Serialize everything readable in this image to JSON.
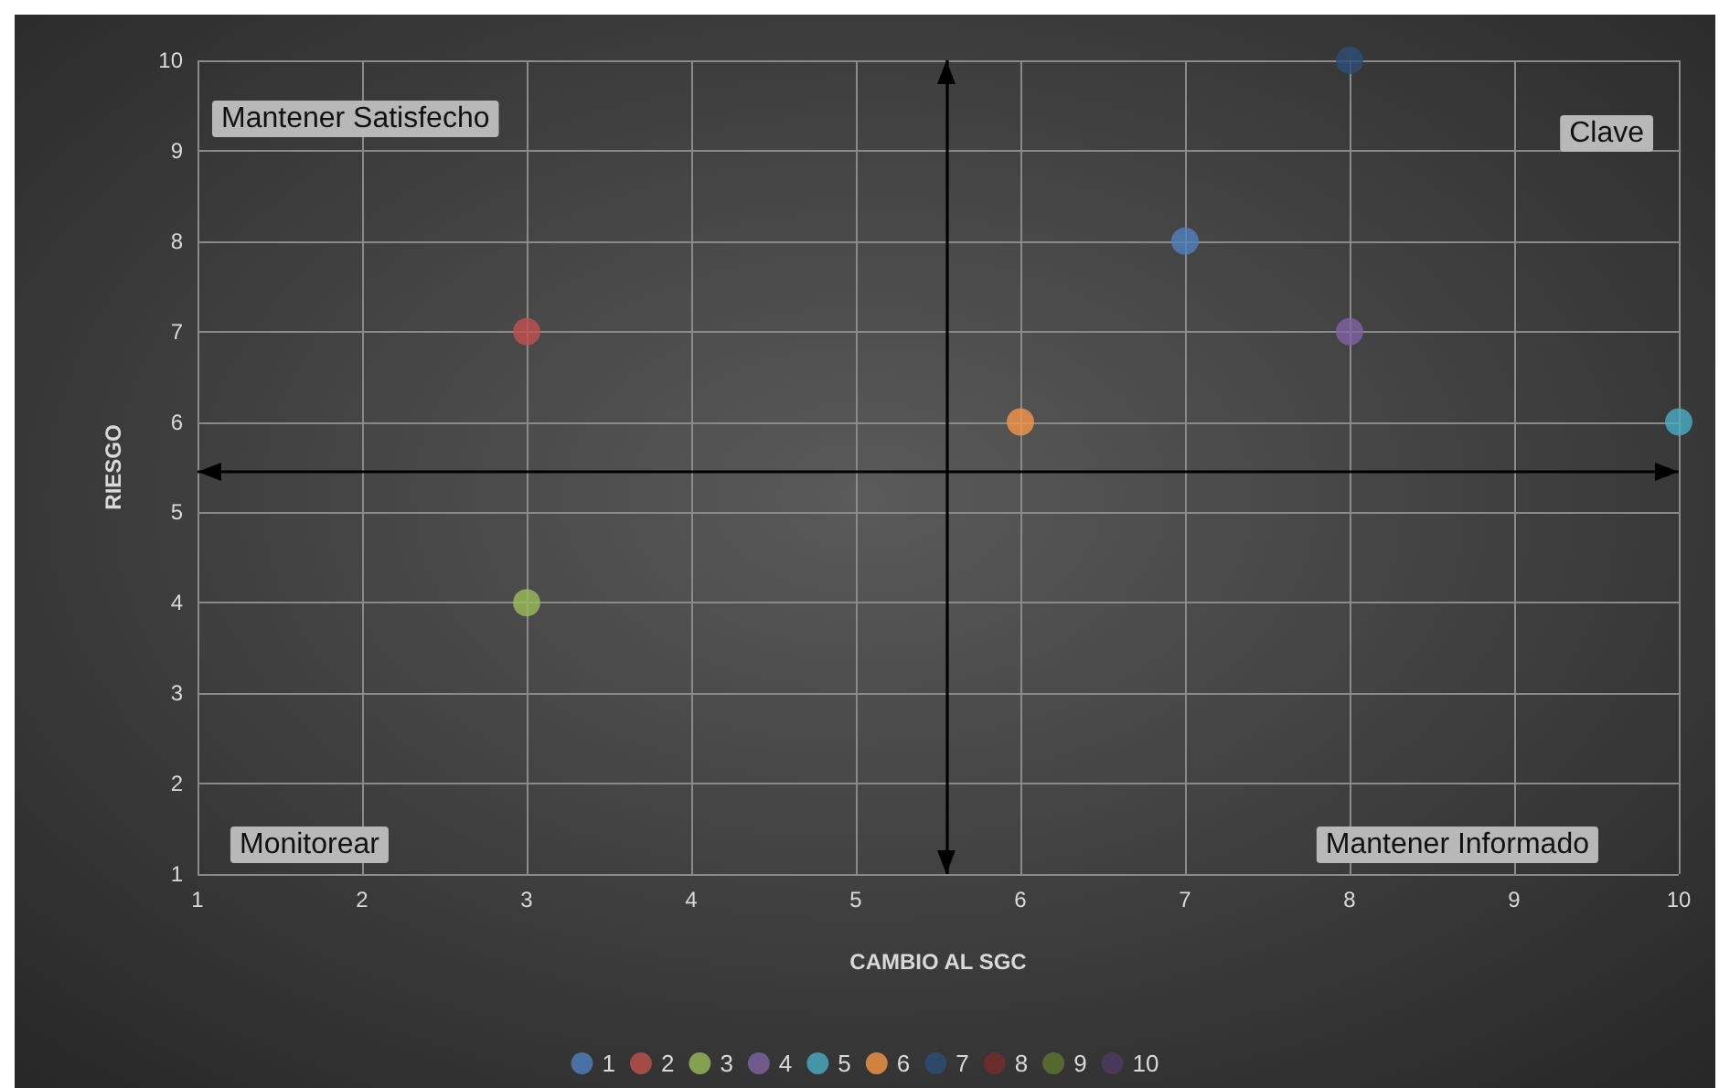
{
  "chart_data": {
    "type": "scatter",
    "xlabel": "CAMBIO AL SGC",
    "ylabel": "RIESGO",
    "xlim": [
      1,
      10
    ],
    "xticks": [
      1,
      2,
      3,
      4,
      5,
      6,
      7,
      8,
      9,
      10
    ],
    "ylim": [
      1,
      10
    ],
    "yticks": [
      1,
      2,
      3,
      4,
      5,
      6,
      7,
      8,
      9,
      10
    ],
    "grid": true,
    "legend": "bottom",
    "marker": "circle",
    "series": [
      {
        "name": "1",
        "color": "#4f81bd",
        "x": [
          7
        ],
        "values": [
          8
        ]
      },
      {
        "name": "2",
        "color": "#c0504d",
        "x": [
          3
        ],
        "values": [
          7
        ]
      },
      {
        "name": "3",
        "color": "#9bbb59",
        "x": [
          3
        ],
        "values": [
          4
        ]
      },
      {
        "name": "4",
        "color": "#8064a2",
        "x": [
          8
        ],
        "values": [
          7
        ]
      },
      {
        "name": "5",
        "color": "#4bacc6",
        "x": [
          10
        ],
        "values": [
          6
        ]
      },
      {
        "name": "6",
        "color": "#f79646",
        "x": [
          6
        ],
        "values": [
          6
        ]
      },
      {
        "name": "7",
        "color": "#2c4d75",
        "x": [
          8
        ],
        "values": [
          10
        ]
      },
      {
        "name": "8",
        "color": "#772c2a",
        "x": [
          null
        ],
        "values": [
          null
        ]
      },
      {
        "name": "9",
        "color": "#5f7530",
        "x": [
          null
        ],
        "values": [
          null
        ]
      },
      {
        "name": "10",
        "color": "#4d3b62",
        "x": [
          null
        ],
        "values": [
          null
        ]
      }
    ],
    "ref_lines": [
      {
        "axis": "x",
        "value": 5.55,
        "color": "#000000"
      },
      {
        "axis": "y",
        "value": 5.45,
        "color": "#000000"
      }
    ],
    "annotations": [
      "Mantener Satisfecho",
      "Clave",
      "Monitorear",
      "Mantener Informado"
    ]
  }
}
